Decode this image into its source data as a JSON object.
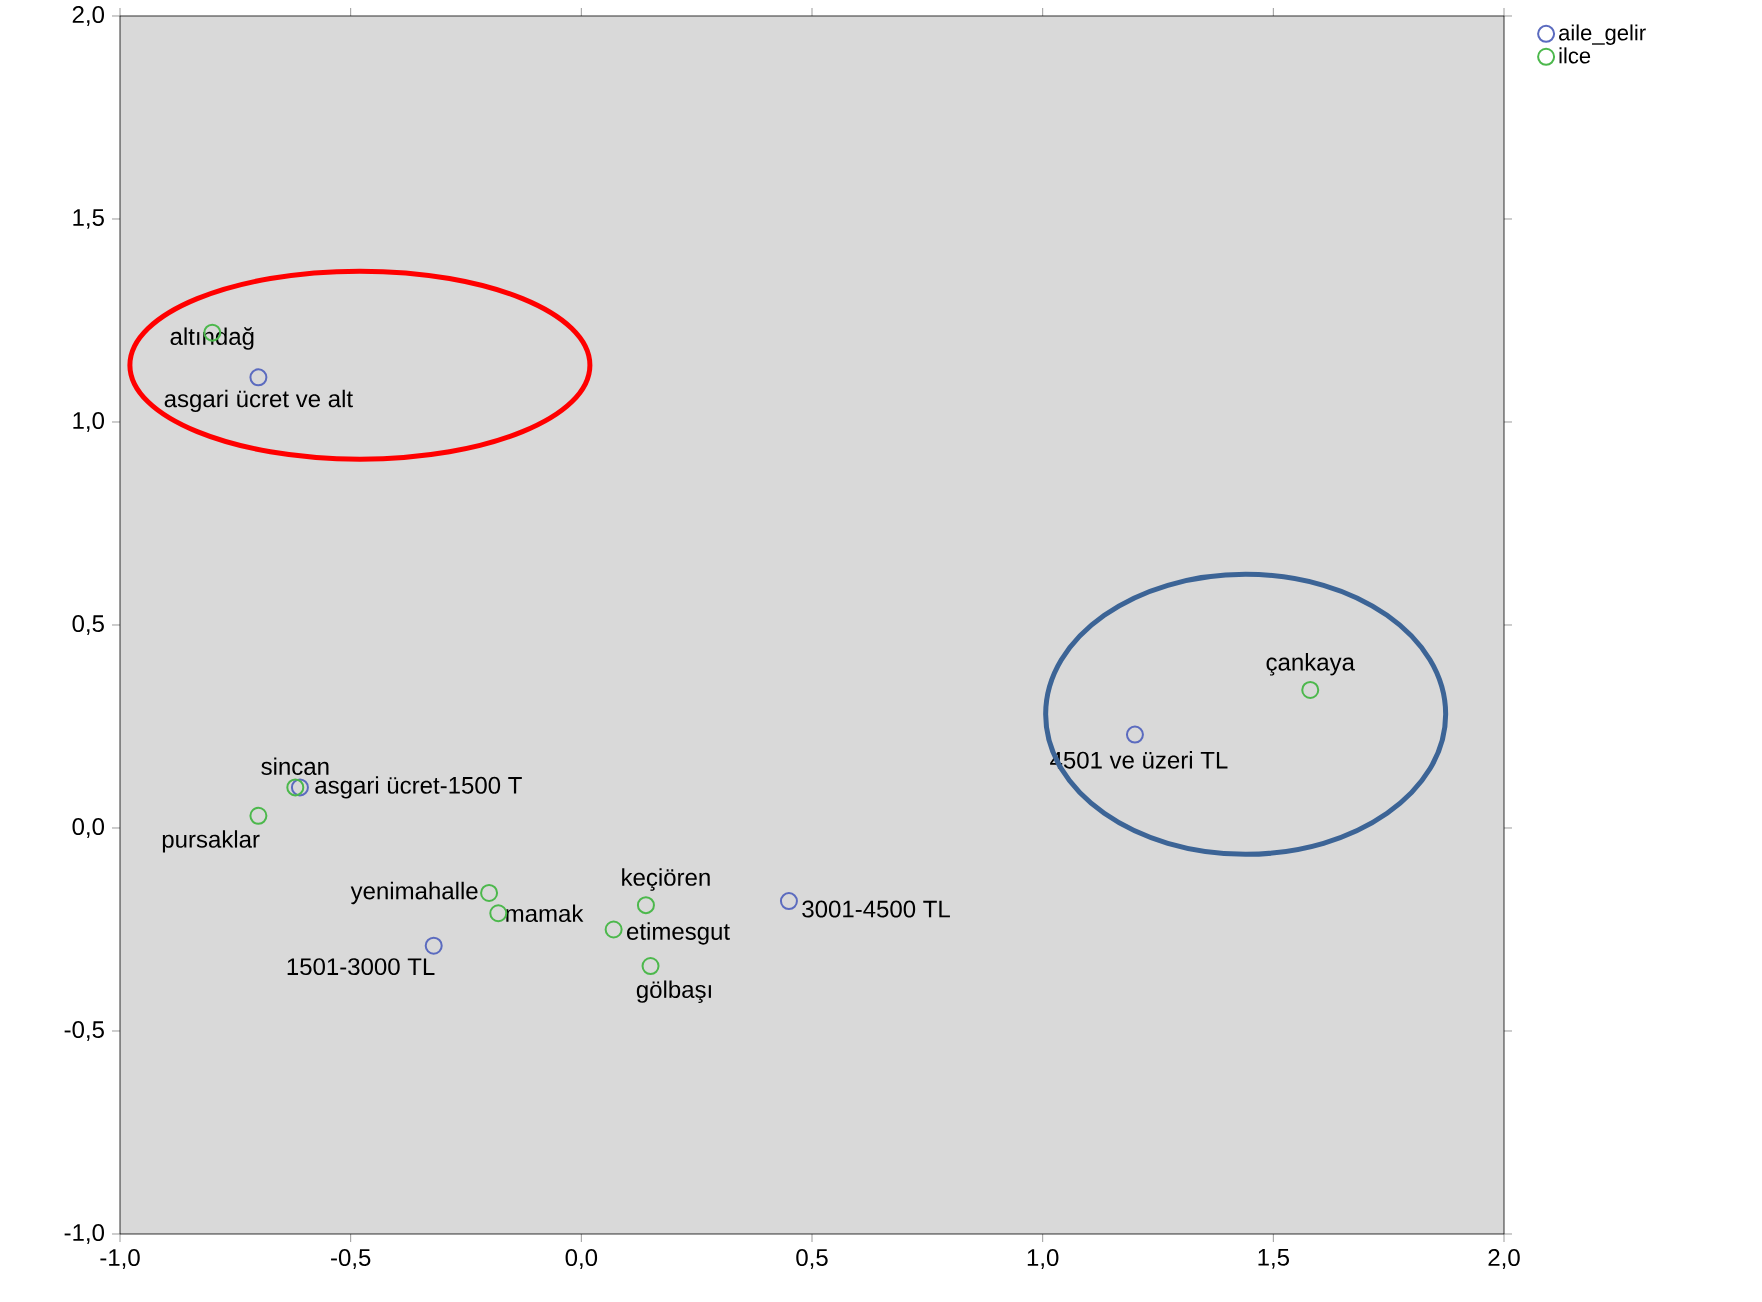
{
  "chart_data": {
    "type": "scatter",
    "series": [
      {
        "name": "aile_gelir",
        "color": "#5b6bbf",
        "x": [
          -0.7,
          -0.61,
          -0.32,
          0.45,
          1.2
        ],
        "values": [
          1.11,
          0.1,
          -0.29,
          -0.18,
          0.23
        ]
      },
      {
        "name": "ilce",
        "color": "#4cb84c",
        "x": [
          -0.8,
          -0.62,
          -0.7,
          -0.2,
          -0.18,
          0.14,
          0.07,
          0.15,
          1.58
        ],
        "values": [
          1.22,
          0.1,
          0.03,
          -0.16,
          -0.21,
          -0.19,
          -0.25,
          -0.34,
          0.34
        ]
      }
    ],
    "annotations": [
      {
        "text": "asgari ücret ve alt",
        "x": -0.7,
        "y": 1.11
      },
      {
        "text": "asgari ücret-1500 T",
        "x": -0.61,
        "y": 0.1
      },
      {
        "text": "1501-3000 TL",
        "x": -0.32,
        "y": -0.29
      },
      {
        "text": "3001-4500 TL",
        "x": 0.45,
        "y": -0.18
      },
      {
        "text": "4501 ve üzeri TL",
        "x": 1.2,
        "y": 0.23
      },
      {
        "text": "altındağ",
        "x": -0.8,
        "y": 1.22
      },
      {
        "text": "sincan",
        "x": -0.62,
        "y": 0.1
      },
      {
        "text": "pursaklar",
        "x": -0.7,
        "y": 0.03
      },
      {
        "text": "yenimahalle",
        "x": -0.2,
        "y": -0.16
      },
      {
        "text": "mamak",
        "x": -0.18,
        "y": -0.21
      },
      {
        "text": "keçiören",
        "x": 0.14,
        "y": -0.19
      },
      {
        "text": "etimesgut",
        "x": 0.07,
        "y": -0.25
      },
      {
        "text": "gölbaşı",
        "x": 0.15,
        "y": -0.34
      },
      {
        "text": "çankaya",
        "x": 1.58,
        "y": 0.34
      }
    ],
    "xlim": [
      -1.0,
      2.0
    ],
    "ylim": [
      -1.0,
      2.0
    ],
    "xticks": [
      {
        "value": -1.0,
        "label": "-1,0"
      },
      {
        "value": -0.5,
        "label": "-0,5"
      },
      {
        "value": 0.0,
        "label": "0,0"
      },
      {
        "value": 0.5,
        "label": "0,5"
      },
      {
        "value": 1.0,
        "label": "1,0"
      },
      {
        "value": 1.5,
        "label": "1,5"
      },
      {
        "value": 2.0,
        "label": "2,0"
      }
    ],
    "yticks": [
      {
        "value": -1.0,
        "label": "-1,0"
      },
      {
        "value": -0.5,
        "label": "-0,5"
      },
      {
        "value": 0.0,
        "label": "0,0"
      },
      {
        "value": 0.5,
        "label": "0,5"
      },
      {
        "value": 1.0,
        "label": "1,0"
      },
      {
        "value": 1.5,
        "label": "1,5"
      },
      {
        "value": 2.0,
        "label": "2,0"
      }
    ],
    "grid": false,
    "legend": "top right",
    "marker": "circle"
  }
}
